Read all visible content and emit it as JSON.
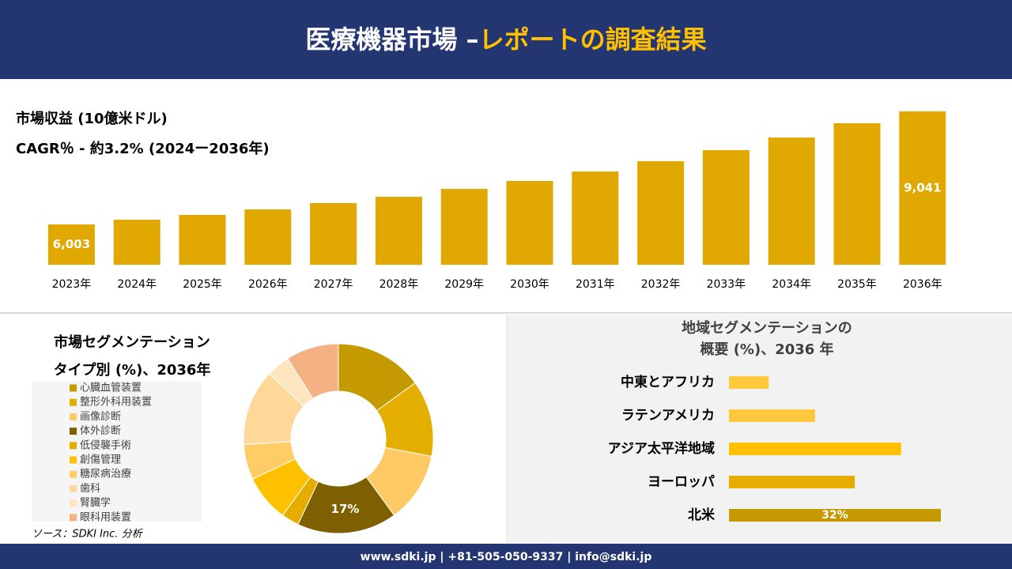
{
  "header": {
    "title": "医療機器市場 –",
    "highlight": "レポートの調査結果"
  },
  "source": "ソース：SDKI Inc. 分析",
  "footer": "www.sdki.jp | +81-505-050-9337 | info@sdki.jp",
  "chart_data": [
    {
      "type": "bar",
      "title": "市場収益 (10億米ドル)",
      "subtitle": "CAGR％ - 約3.2% (2024ー2036年)",
      "categories": [
        "2023年",
        "2024年",
        "2025年",
        "2026年",
        "2027年",
        "2028年",
        "2029年",
        "2030年",
        "2031年",
        "2032年",
        "2033年",
        "2034年",
        "2035年",
        "2036年"
      ],
      "values": [
        6003,
        6131,
        6259,
        6407,
        6577,
        6747,
        6959,
        7172,
        7427,
        7703,
        8001,
        8340,
        8723,
        9041
      ],
      "value_labels": [
        "6,003",
        null,
        null,
        null,
        null,
        null,
        null,
        null,
        null,
        null,
        null,
        null,
        null,
        "9,041"
      ],
      "color": "#e0a800",
      "ylim": [
        4920,
        9041
      ]
    },
    {
      "type": "pie",
      "title": "市場セグメンテーション",
      "subtitle": "タイプ別 (%)、2036年",
      "categories": [
        "心臓血管装置",
        "整形外科用装置",
        "画像診断",
        "体外診断",
        "低侵襲手術",
        "創傷管理",
        "糖尿病治療",
        "歯科",
        "腎臓学",
        "眼科用装置"
      ],
      "values": [
        15,
        13,
        12,
        17,
        3,
        8,
        6,
        13,
        4,
        9
      ],
      "value_labels": [
        null,
        null,
        null,
        "17%",
        null,
        null,
        null,
        null,
        null,
        null
      ],
      "colors": [
        "#c49a00",
        "#e3ae00",
        "#ffc966",
        "#7f6000",
        "#e6ac00",
        "#ffc000",
        "#ffcc66",
        "#ffd899",
        "#fde5c0",
        "#f4b183"
      ]
    },
    {
      "type": "hbar",
      "title": "地域セグメンテーションの",
      "subtitle": "概要 (%)、2036 年",
      "categories": [
        "中東とアフリカ",
        "ラテンアメリカ",
        "アジア太平洋地域",
        "ヨーロッパ",
        "北米"
      ],
      "values": [
        6,
        13,
        26,
        19,
        32
      ],
      "value_labels": [
        null,
        null,
        null,
        null,
        "32%"
      ],
      "colors": [
        "#ffc83d",
        "#ffc83d",
        "#ffc000",
        "#e6ac00",
        "#c49a00"
      ],
      "xlim": [
        0,
        32
      ]
    }
  ]
}
